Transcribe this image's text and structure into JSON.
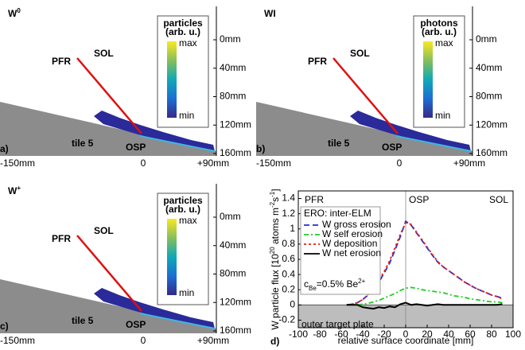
{
  "labels": {
    "pfr": "PFR",
    "sol": "SOL",
    "tile": "tile 5",
    "osp": "OSP",
    "max": "max",
    "min": "min",
    "yticks": [
      "160mm",
      "120mm",
      "80mm",
      "40mm",
      "0mm"
    ],
    "xticks": [
      "-150mm",
      "0",
      "+90mm"
    ]
  },
  "panels": [
    {
      "letter": "a)",
      "species": "W",
      "species_sup": "0",
      "colorbar_title": [
        "particles",
        "(arb. u.)"
      ]
    },
    {
      "letter": "b)",
      "species": "WI",
      "colorbar_title": [
        "photons",
        "(arb. u.)"
      ]
    },
    {
      "letter": "c)",
      "species": "W",
      "species_sup": "+",
      "colorbar_title": [
        "particles",
        "(arb. u.)"
      ]
    }
  ],
  "chart_data": {
    "type": "line",
    "letter": "d)",
    "xlabel": "relative surface coordinate [mm]",
    "ylabel": [
      "W particle flux [10",
      "20",
      " atoms m",
      "-2",
      "s",
      "-1",
      "]"
    ],
    "regions": [
      "PFR",
      "OSP",
      "SOL"
    ],
    "plate_label": "outer target plate",
    "legend_title": "ERO: inter-ELM",
    "note": [
      "c",
      "Be",
      "=0.5% Be",
      "2+"
    ],
    "xlim": [
      -100,
      100
    ],
    "xticks": [
      -100,
      -80,
      -60,
      -40,
      -20,
      0,
      20,
      40,
      60,
      80,
      100
    ],
    "ylim": [
      -0.3,
      1.5
    ],
    "yticks": [
      -0.2,
      0,
      0.2,
      0.4,
      0.6,
      0.8,
      1,
      1.2,
      1.4
    ],
    "x": [
      -55,
      -50,
      -45,
      -40,
      -35,
      -30,
      -25,
      -20,
      -15,
      -10,
      -5,
      0,
      5,
      10,
      15,
      20,
      25,
      30,
      35,
      40,
      45,
      50,
      55,
      60,
      65,
      70,
      75,
      80,
      85,
      90
    ],
    "series": [
      {
        "name": "W gross erosion",
        "color": "#1f2fd0",
        "linestyle": "dashed",
        "values": [
          0,
          0.01,
          0.03,
          0.07,
          0.13,
          0.2,
          0.3,
          0.42,
          0.55,
          0.72,
          0.9,
          1.1,
          1.05,
          0.95,
          0.85,
          0.75,
          0.65,
          0.56,
          0.5,
          0.45,
          0.4,
          0.35,
          0.3,
          0.26,
          0.22,
          0.19,
          0.16,
          0.13,
          0.11,
          0.09
        ]
      },
      {
        "name": "W self erosion",
        "color": "#22cc22",
        "linestyle": "dashdot",
        "values": [
          0,
          0,
          0,
          0.01,
          0.02,
          0.04,
          0.06,
          0.09,
          0.12,
          0.15,
          0.19,
          0.22,
          0.23,
          0.22,
          0.2,
          0.19,
          0.18,
          0.17,
          0.16,
          0.14,
          0.12,
          0.11,
          0.1,
          0.08,
          0.07,
          0.06,
          0.05,
          0.04,
          0.04,
          0.03
        ]
      },
      {
        "name": "W deposition",
        "color": "#e02020",
        "linestyle": "dotted",
        "values": [
          0,
          0.01,
          0.03,
          0.07,
          0.14,
          0.22,
          0.32,
          0.44,
          0.58,
          0.75,
          0.93,
          1.08,
          1.06,
          0.96,
          0.86,
          0.76,
          0.66,
          0.57,
          0.5,
          0.45,
          0.4,
          0.35,
          0.3,
          0.26,
          0.22,
          0.19,
          0.16,
          0.13,
          0.11,
          0.08
        ]
      },
      {
        "name": "W net erosion",
        "color": "#000000",
        "linestyle": "solid",
        "values": [
          0,
          0,
          0,
          -0.03,
          -0.04,
          -0.05,
          -0.03,
          -0.04,
          -0.02,
          -0.03,
          0.01,
          0.03,
          0,
          0.01,
          0,
          -0.01,
          0,
          0.01,
          0,
          0,
          0,
          0,
          0,
          0,
          0,
          0,
          0,
          0,
          0,
          0.01
        ]
      }
    ]
  }
}
